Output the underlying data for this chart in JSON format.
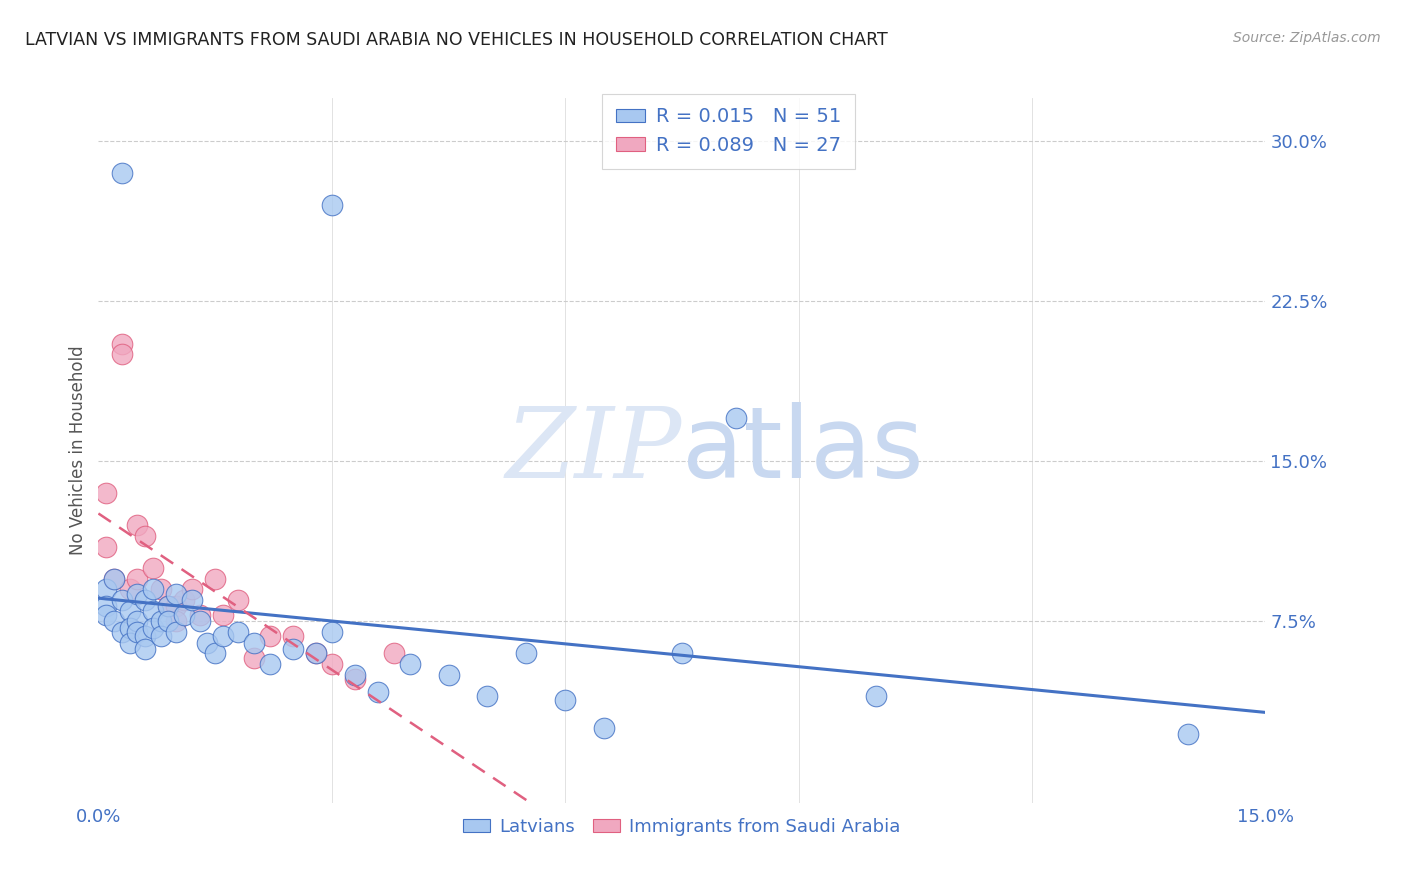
{
  "title": "LATVIAN VS IMMIGRANTS FROM SAUDI ARABIA NO VEHICLES IN HOUSEHOLD CORRELATION CHART",
  "source": "Source: ZipAtlas.com",
  "ylabel": "No Vehicles in Household",
  "xlim": [
    0.0,
    0.15
  ],
  "ylim": [
    -0.01,
    0.32
  ],
  "yticks": [
    0.075,
    0.15,
    0.225,
    0.3
  ],
  "ytick_labels": [
    "7.5%",
    "15.0%",
    "22.5%",
    "30.0%"
  ],
  "legend_r1": "0.015",
  "legend_n1": "51",
  "legend_r2": "0.089",
  "legend_n2": "27",
  "color_latvian": "#a8c8f0",
  "color_saudi": "#f0a8c0",
  "color_line_latvian": "#4472c4",
  "color_line_saudi": "#e06080",
  "watermark_zip": "ZIP",
  "watermark_atlas": "atlas",
  "latvian_x": [
    0.003,
    0.03,
    0.001,
    0.001,
    0.001,
    0.002,
    0.002,
    0.003,
    0.003,
    0.004,
    0.004,
    0.004,
    0.005,
    0.005,
    0.005,
    0.006,
    0.006,
    0.006,
    0.007,
    0.007,
    0.007,
    0.008,
    0.008,
    0.009,
    0.009,
    0.01,
    0.01,
    0.011,
    0.012,
    0.013,
    0.014,
    0.015,
    0.016,
    0.018,
    0.02,
    0.022,
    0.025,
    0.028,
    0.03,
    0.033,
    0.036,
    0.04,
    0.045,
    0.05,
    0.055,
    0.06,
    0.065,
    0.075,
    0.082,
    0.1,
    0.14
  ],
  "latvian_y": [
    0.285,
    0.27,
    0.09,
    0.082,
    0.078,
    0.095,
    0.075,
    0.085,
    0.07,
    0.08,
    0.072,
    0.065,
    0.088,
    0.075,
    0.07,
    0.085,
    0.068,
    0.062,
    0.09,
    0.08,
    0.072,
    0.075,
    0.068,
    0.082,
    0.075,
    0.088,
    0.07,
    0.078,
    0.085,
    0.075,
    0.065,
    0.06,
    0.068,
    0.07,
    0.065,
    0.055,
    0.062,
    0.06,
    0.07,
    0.05,
    0.042,
    0.055,
    0.05,
    0.04,
    0.06,
    0.038,
    0.025,
    0.06,
    0.17,
    0.04,
    0.022
  ],
  "saudi_x": [
    0.001,
    0.001,
    0.002,
    0.003,
    0.003,
    0.004,
    0.005,
    0.005,
    0.006,
    0.007,
    0.008,
    0.009,
    0.01,
    0.01,
    0.011,
    0.012,
    0.013,
    0.015,
    0.016,
    0.018,
    0.02,
    0.022,
    0.025,
    0.028,
    0.03,
    0.033,
    0.038
  ],
  "saudi_y": [
    0.135,
    0.11,
    0.095,
    0.205,
    0.2,
    0.09,
    0.12,
    0.095,
    0.115,
    0.1,
    0.09,
    0.082,
    0.082,
    0.075,
    0.085,
    0.09,
    0.078,
    0.095,
    0.078,
    0.085,
    0.058,
    0.068,
    0.068,
    0.06,
    0.055,
    0.048,
    0.06
  ],
  "bubble_size": 220
}
